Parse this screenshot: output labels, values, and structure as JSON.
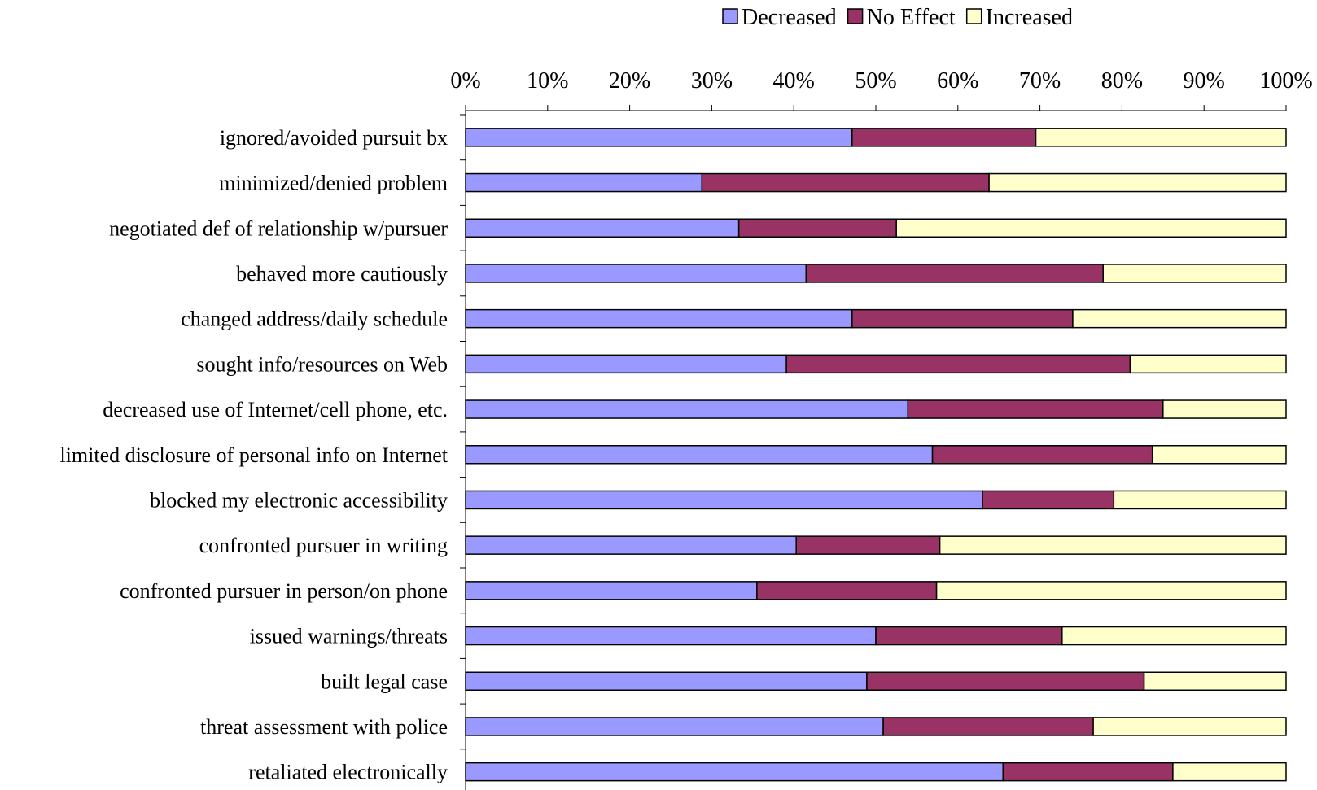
{
  "chart_data": {
    "type": "bar",
    "orientation": "horizontal",
    "stacked": true,
    "percent_stacked": true,
    "title": "",
    "xlabel": "",
    "ylabel": "",
    "xlim": [
      0,
      100
    ],
    "x_ticks": [
      "0%",
      "10%",
      "20%",
      "30%",
      "40%",
      "50%",
      "60%",
      "70%",
      "80%",
      "90%",
      "100%"
    ],
    "x_axis_position": "top",
    "legend_position": "top-right",
    "grid": false,
    "categories": [
      "ignored/avoided pursuit bx",
      "minimized/denied problem",
      "negotiated def of relationship w/pursuer",
      "behaved more cautiously",
      "changed address/daily schedule",
      "sought info/resources on Web",
      "decreased use of Internet/cell phone, etc.",
      "limited disclosure of personal info on Internet",
      "blocked my electronic accessibility",
      "confronted pursuer in writing",
      "confronted pursuer in person/on phone",
      "issued warnings/threats",
      "built legal case",
      "threat assessment with police",
      "retaliated electronically"
    ],
    "series": [
      {
        "name": "Decreased",
        "color": "#9999ff",
        "values": [
          47.1,
          28.8,
          33.3,
          41.5,
          47.1,
          39.1,
          53.9,
          56.9,
          63.0,
          40.3,
          35.5,
          50.0,
          48.9,
          50.9,
          65.5
        ]
      },
      {
        "name": "No Effect",
        "color": "#993366",
        "values": [
          22.4,
          35.0,
          19.2,
          36.2,
          26.9,
          41.9,
          31.1,
          26.8,
          16.0,
          17.5,
          21.9,
          22.7,
          33.8,
          25.6,
          20.7
        ]
      },
      {
        "name": "Increased",
        "color": "#ffffcc",
        "values": [
          30.5,
          36.2,
          47.5,
          22.3,
          26.0,
          19.0,
          15.0,
          16.3,
          21.0,
          42.2,
          42.6,
          27.3,
          17.3,
          23.5,
          13.8
        ]
      }
    ]
  }
}
